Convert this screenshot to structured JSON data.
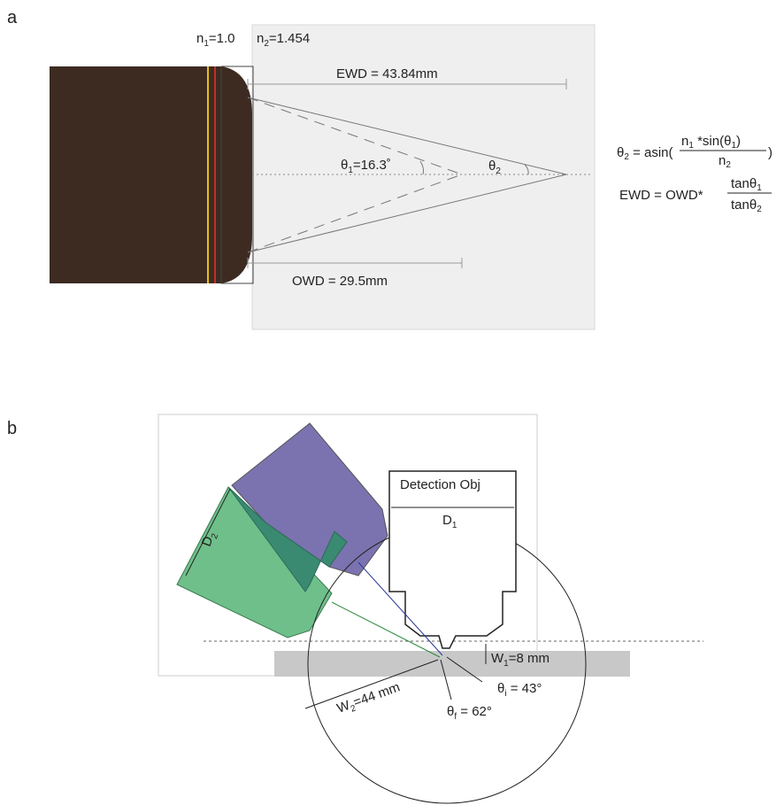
{
  "panel_a": {
    "label": "a",
    "n1": {
      "main": "n",
      "sub": "1",
      "tail": "=1.0"
    },
    "n2": {
      "main": "n",
      "sub": "2",
      "tail": "=1.454"
    },
    "ewd": "EWD =  43.84mm",
    "owd": "OWD = 29.5mm",
    "theta1": {
      "main": "θ",
      "sub": "1",
      "tail": "=16.3˚"
    },
    "theta2": {
      "main": "θ",
      "sub": "2"
    },
    "formula1": {
      "lhs_main": "θ",
      "lhs_sub": "2",
      "lhs_tail": " = asin(",
      "num_a": "n",
      "num_a_sub": "1",
      "num_b": " *sin(θ",
      "num_b_sub": "1",
      "num_c": ")",
      "den": "n",
      "den_sub": "2",
      "close": ")"
    },
    "formula2": {
      "lhs": "EWD = OWD*",
      "num": "tanθ",
      "num_sub": "1",
      "den": "tanθ",
      "den_sub": "2"
    }
  },
  "panel_b": {
    "label": "b",
    "detection_obj": "Detection Obj",
    "d1": {
      "main": "D",
      "sub": "1"
    },
    "d2": {
      "main": "D",
      "sub": "2"
    },
    "w1": {
      "main": "W",
      "sub": "1",
      "tail": "=8 mm"
    },
    "w2": {
      "main": "W",
      "sub": "2",
      "tail": "=44 mm"
    },
    "theta_i": {
      "main": "θ",
      "sub": "i",
      "tail": " = 43°"
    },
    "theta_f": {
      "main": "θ",
      "sub": "f",
      "tail": " = 62°"
    }
  }
}
